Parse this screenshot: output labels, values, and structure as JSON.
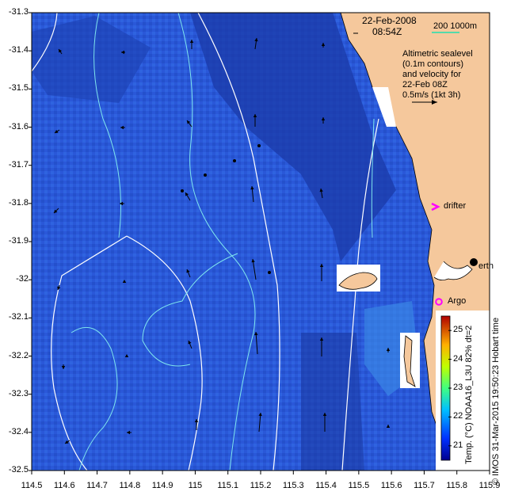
{
  "map": {
    "date": "22-Feb-2008",
    "time": "08:54Z",
    "scale_label": "200  1000m",
    "legend_lines": [
      "Altimetric sealevel",
      "(0.1m contours)",
      "and velocity for",
      "22-Feb 08Z",
      "0.5m/s (1kt 3h)"
    ],
    "drifter_label": "drifter",
    "argo_label": "Argo",
    "perth_label": "erth",
    "colorbar_title": "Temp. (°C) NOAA16_L3U 82% dt=2",
    "credit": "© IMOS 31-Mar-2015 19:50:23 Hobart time",
    "colors": {
      "land": "#f5c89c",
      "contour": "#7fe6ee",
      "sealevel": "#ffffff",
      "drifter": "#ff00ff",
      "argo": "#ff00ff"
    }
  },
  "axes": {
    "x_ticks": [
      "114.5",
      "114.6",
      "114.7",
      "114.8",
      "114.9",
      "115",
      "115.1",
      "115.2",
      "115.3",
      "115.4",
      "115.5",
      "115.6",
      "115.7",
      "115.8",
      "115.9"
    ],
    "y_ticks": [
      "-31.3",
      "-31.4",
      "-31.5",
      "-31.6",
      "-31.7",
      "-31.8",
      "-31.9",
      "-32",
      "-32.1",
      "-32.2",
      "-32.3",
      "-32.4",
      "-32.5"
    ]
  },
  "colorbar": {
    "ticks": [
      "25",
      "24",
      "23",
      "22",
      "21"
    ],
    "range": [
      20.5,
      25.5
    ]
  }
}
